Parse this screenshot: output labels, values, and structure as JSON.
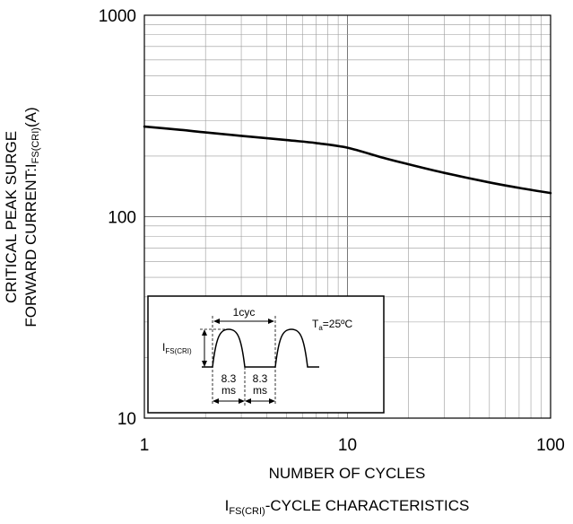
{
  "chart_data": {
    "type": "line",
    "title": "",
    "caption": {
      "main": "I",
      "sub": "FS(CRI)",
      "rest": "-CYCLE CHARACTERISTICS"
    },
    "xlabel": "NUMBER OF CYCLES",
    "ylabel": {
      "line1": "CRITICAL PEAK SURGE",
      "line2_main": "FORWARD CURRENT:I",
      "line2_sub": "FS(CRI)",
      "line2_rest": "(A)"
    },
    "x_scale": "log",
    "y_scale": "log",
    "xlim": [
      1,
      100
    ],
    "ylim": [
      10,
      1000
    ],
    "grid": true,
    "x_ticks": [
      "1",
      "10",
      "100"
    ],
    "y_ticks": [
      "10",
      "100",
      "1000"
    ],
    "series": [
      {
        "x": [
          1,
          1.5,
          2,
          3,
          5,
          7,
          10,
          15,
          20,
          30,
          50,
          70,
          100
        ],
        "y": [
          280,
          270,
          262,
          252,
          240,
          232,
          220,
          196,
          182,
          165,
          148,
          139,
          131
        ]
      }
    ],
    "inset": {
      "label_1cyc": "1cyc",
      "label_ifs_main": "I",
      "label_ifs_sub": "FS(CRI)",
      "label_ta_main": "T",
      "label_ta_sub": "a",
      "label_ta_rest": "=25ºC",
      "label_t1_value": "8.3",
      "label_t1_unit": "ms",
      "label_t2_value": "8.3",
      "label_t2_unit": "ms"
    }
  }
}
